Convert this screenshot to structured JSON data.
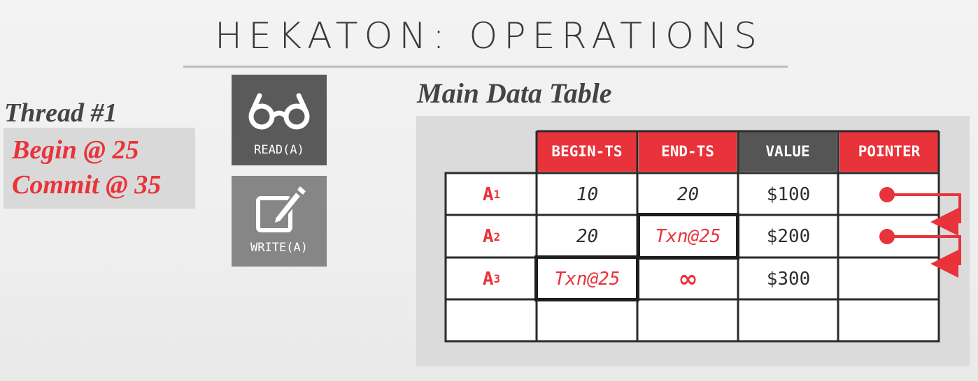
{
  "title": "HEKATON: OPERATIONS",
  "thread": {
    "title": "Thread #1",
    "begin": "Begin @ 25",
    "commit": "Commit @ 35"
  },
  "operations": {
    "read": {
      "label": "READ(A)",
      "icon": "glasses-icon"
    },
    "write": {
      "label": "WRITE(A)",
      "icon": "edit-icon"
    }
  },
  "table": {
    "heading": "Main Data Table",
    "columns": [
      "BEGIN-TS",
      "END-TS",
      "VALUE",
      "POINTER"
    ],
    "rows": [
      {
        "key": "A",
        "sub": "1",
        "begin": "10",
        "end": "20",
        "value": "$100",
        "pointer": "dot"
      },
      {
        "key": "A",
        "sub": "2",
        "begin": "20",
        "end": "Txn@25",
        "value": "$200",
        "pointer": "dot"
      },
      {
        "key": "A",
        "sub": "3",
        "begin": "Txn@25",
        "end": "∞",
        "value": "$300",
        "pointer": ""
      },
      {
        "key": "",
        "sub": "",
        "begin": "",
        "end": "",
        "value": "",
        "pointer": ""
      }
    ]
  },
  "colors": {
    "accent_red": "#e8333a",
    "dark_header": "#555555",
    "border": "#1e1e1e"
  }
}
